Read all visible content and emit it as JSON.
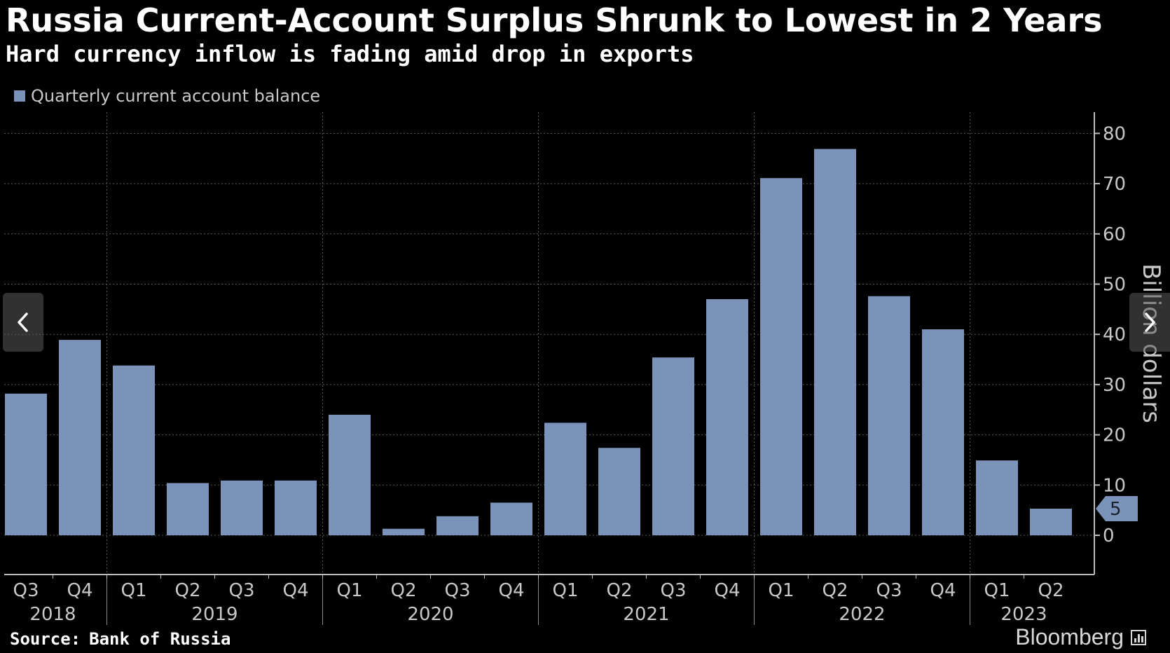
{
  "title": "Russia Current-Account Surplus Shrunk to Lowest in 2 Years",
  "subtitle": "Hard currency inflow is fading amid drop in exports",
  "source_label": "Source:",
  "source_name": "Bank of Russia",
  "brand": "Bloomberg",
  "nav": {
    "prev_icon": "chevron-left-icon",
    "next_icon": "chevron-right-icon"
  },
  "colors": {
    "bar": "#7b93b8",
    "background": "#000000",
    "grid": "#5a5a5a",
    "text": "#ffffff",
    "axis_text": "#c8c8c8"
  },
  "chart_data": {
    "type": "bar",
    "legend": [
      "Quarterly current account balance"
    ],
    "legend_placement": "top-left",
    "grid": true,
    "ylabel": "Billion dollars",
    "yaxis_side": "right",
    "ylim": [
      -8,
      85
    ],
    "yticks": [
      0,
      10,
      20,
      30,
      40,
      50,
      60,
      70,
      80
    ],
    "last_value_label": "5",
    "categories": [
      "Q3",
      "Q4",
      "Q1",
      "Q2",
      "Q3",
      "Q4",
      "Q1",
      "Q2",
      "Q3",
      "Q4",
      "Q1",
      "Q2",
      "Q3",
      "Q4",
      "Q1",
      "Q2",
      "Q3",
      "Q4",
      "Q1",
      "Q2"
    ],
    "years": [
      {
        "label": "2018",
        "start": 0,
        "count": 2
      },
      {
        "label": "2019",
        "start": 2,
        "count": 4
      },
      {
        "label": "2020",
        "start": 6,
        "count": 4
      },
      {
        "label": "2021",
        "start": 10,
        "count": 4
      },
      {
        "label": "2022",
        "start": 14,
        "count": 4
      },
      {
        "label": "2023",
        "start": 18,
        "count": 2
      }
    ],
    "series": [
      {
        "name": "Quarterly current account balance",
        "values": [
          28.2,
          38.9,
          33.8,
          10.4,
          10.9,
          10.9,
          24.0,
          1.3,
          3.8,
          6.5,
          22.4,
          17.4,
          35.4,
          47.0,
          71.1,
          76.9,
          47.6,
          41.0,
          14.9,
          5.3
        ]
      }
    ]
  }
}
